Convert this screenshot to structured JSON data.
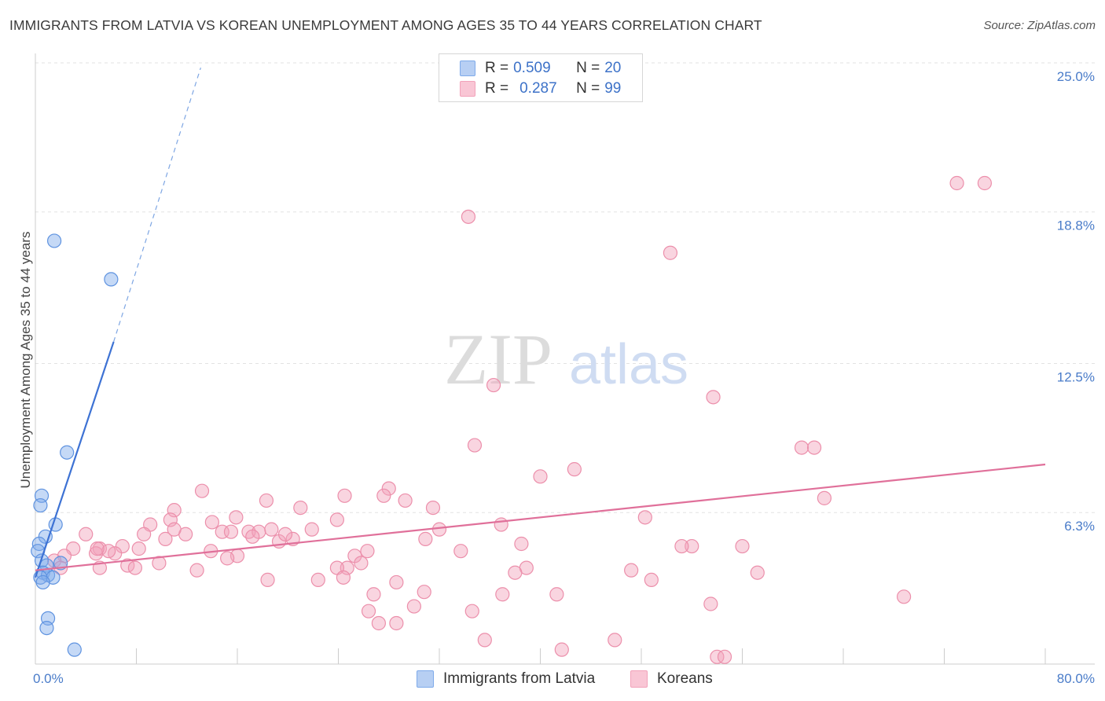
{
  "title": "IMMIGRANTS FROM LATVIA VS KOREAN UNEMPLOYMENT AMONG AGES 35 TO 44 YEARS CORRELATION CHART",
  "source": "Source: ZipAtlas.com",
  "watermark": {
    "zip": "ZIP",
    "atlas": "atlas"
  },
  "legend": {
    "rows": [
      {
        "r_label": "R = ",
        "r_value": "0.509",
        "n_label": "N = ",
        "n_value": "20"
      },
      {
        "r_label": "R = ",
        "r_value": "0.287",
        "n_label": "N = ",
        "n_value": "99"
      }
    ]
  },
  "bottom_legend": [
    "Immigrants from Latvia",
    "Koreans"
  ],
  "chart_data": {
    "type": "scatter",
    "title": "IMMIGRANTS FROM LATVIA VS KOREAN UNEMPLOYMENT AMONG AGES 35 TO 44 YEARS CORRELATION CHART",
    "xlabel": "",
    "ylabel": "Unemployment Among Ages 35 to 44 years",
    "xlim": [
      0,
      80
    ],
    "ylim": [
      0,
      25
    ],
    "x_tick_labels": [
      "0.0%",
      "80.0%"
    ],
    "y_ticks": [
      6.3,
      12.5,
      18.8,
      25.0
    ],
    "y_tick_labels": [
      "6.3%",
      "12.5%",
      "18.8%",
      "25.0%"
    ],
    "grid": "horizontal dashed",
    "legend_position": "top-center",
    "colors": {
      "latvia": "#7eaaea",
      "latvia_line": "#3d72d4",
      "koreans": "#f2a2ba",
      "koreans_line": "#e0709a"
    },
    "series": [
      {
        "name": "Immigrants from Latvia",
        "r": 0.509,
        "n": 20,
        "trend": {
          "x0": 0.0,
          "y0": 3.6,
          "x1": 6.2,
          "y1": 13.4,
          "dashed_to": [
            13.1,
            24.8
          ]
        },
        "points": [
          [
            1.5,
            17.6
          ],
          [
            6.0,
            16.0
          ],
          [
            2.5,
            8.8
          ],
          [
            0.5,
            7.0
          ],
          [
            0.4,
            6.6
          ],
          [
            1.6,
            5.8
          ],
          [
            0.8,
            5.3
          ],
          [
            0.3,
            5.0
          ],
          [
            0.2,
            4.7
          ],
          [
            0.5,
            4.3
          ],
          [
            0.9,
            4.1
          ],
          [
            2.0,
            4.2
          ],
          [
            0.6,
            3.8
          ],
          [
            1.0,
            3.7
          ],
          [
            1.4,
            3.6
          ],
          [
            0.4,
            3.6
          ],
          [
            0.6,
            3.4
          ],
          [
            1.0,
            1.9
          ],
          [
            0.9,
            1.5
          ],
          [
            3.1,
            0.6
          ]
        ]
      },
      {
        "name": "Koreans",
        "r": 0.287,
        "n": 99,
        "trend": {
          "x0": 0.0,
          "y0": 3.9,
          "x1": 80.0,
          "y1": 8.3
        },
        "points": [
          [
            73.0,
            20.0
          ],
          [
            75.2,
            20.0
          ],
          [
            34.3,
            18.6
          ],
          [
            50.3,
            17.1
          ],
          [
            36.3,
            11.6
          ],
          [
            53.7,
            11.1
          ],
          [
            34.8,
            9.1
          ],
          [
            60.7,
            9.0
          ],
          [
            61.7,
            9.0
          ],
          [
            42.7,
            8.1
          ],
          [
            40.0,
            7.8
          ],
          [
            62.5,
            6.9
          ],
          [
            13.2,
            7.2
          ],
          [
            28.0,
            7.3
          ],
          [
            24.5,
            7.0
          ],
          [
            18.3,
            6.8
          ],
          [
            27.6,
            7.0
          ],
          [
            29.3,
            6.8
          ],
          [
            11.0,
            6.4
          ],
          [
            21.0,
            6.5
          ],
          [
            31.5,
            6.5
          ],
          [
            10.7,
            6.0
          ],
          [
            15.9,
            6.1
          ],
          [
            23.9,
            6.0
          ],
          [
            48.3,
            6.1
          ],
          [
            36.9,
            5.8
          ],
          [
            9.1,
            5.8
          ],
          [
            14.0,
            5.9
          ],
          [
            4.0,
            5.4
          ],
          [
            8.6,
            5.4
          ],
          [
            11.9,
            5.4
          ],
          [
            14.8,
            5.5
          ],
          [
            15.5,
            5.5
          ],
          [
            16.9,
            5.5
          ],
          [
            17.7,
            5.5
          ],
          [
            18.7,
            5.6
          ],
          [
            21.9,
            5.6
          ],
          [
            32.0,
            5.6
          ],
          [
            17.2,
            5.3
          ],
          [
            10.3,
            5.2
          ],
          [
            20.4,
            5.2
          ],
          [
            30.9,
            5.2
          ],
          [
            19.3,
            5.1
          ],
          [
            38.5,
            5.0
          ],
          [
            52.0,
            4.9
          ],
          [
            51.2,
            4.9
          ],
          [
            56.0,
            4.9
          ],
          [
            3.0,
            4.8
          ],
          [
            6.9,
            4.9
          ],
          [
            8.2,
            4.8
          ],
          [
            5.1,
            4.8
          ],
          [
            13.9,
            4.7
          ],
          [
            26.3,
            4.7
          ],
          [
            33.7,
            4.7
          ],
          [
            4.8,
            4.6
          ],
          [
            6.3,
            4.6
          ],
          [
            5.8,
            4.7
          ],
          [
            16.0,
            4.5
          ],
          [
            25.3,
            4.5
          ],
          [
            2.3,
            4.5
          ],
          [
            15.2,
            4.4
          ],
          [
            9.8,
            4.2
          ],
          [
            1.5,
            4.3
          ],
          [
            25.8,
            4.2
          ],
          [
            2.0,
            4.0
          ],
          [
            5.1,
            4.0
          ],
          [
            7.3,
            4.1
          ],
          [
            7.9,
            4.0
          ],
          [
            24.7,
            4.0
          ],
          [
            23.9,
            4.0
          ],
          [
            38.9,
            4.0
          ],
          [
            12.8,
            3.9
          ],
          [
            38.0,
            3.8
          ],
          [
            47.2,
            3.9
          ],
          [
            57.2,
            3.8
          ],
          [
            24.4,
            3.6
          ],
          [
            48.8,
            3.5
          ],
          [
            22.4,
            3.5
          ],
          [
            18.4,
            3.5
          ],
          [
            28.6,
            3.4
          ],
          [
            30.8,
            3.0
          ],
          [
            26.8,
            2.9
          ],
          [
            37.0,
            2.9
          ],
          [
            41.3,
            2.9
          ],
          [
            68.8,
            2.8
          ],
          [
            53.5,
            2.5
          ],
          [
            30.0,
            2.4
          ],
          [
            26.4,
            2.2
          ],
          [
            34.6,
            2.2
          ],
          [
            27.2,
            1.7
          ],
          [
            28.6,
            1.7
          ],
          [
            35.6,
            1.0
          ],
          [
            45.9,
            1.0
          ],
          [
            41.7,
            0.6
          ],
          [
            54.0,
            0.3
          ],
          [
            54.6,
            0.3
          ],
          [
            4.9,
            4.8
          ],
          [
            11.0,
            5.6
          ],
          [
            19.8,
            5.4
          ]
        ]
      }
    ]
  }
}
